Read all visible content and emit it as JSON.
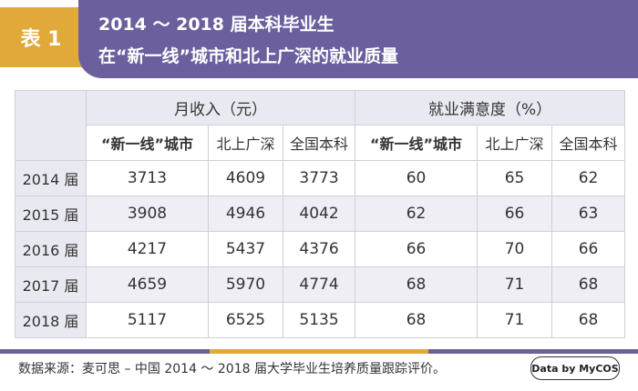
{
  "header": {
    "tag": "表 1",
    "title_line1": "2014 ～ 2018 届本科毕业生",
    "title_line2": "在“新一线”城市和北上广深的就业质量"
  },
  "table": {
    "group_headers": [
      "月收入（元）",
      "就业满意度（%）"
    ],
    "sub_headers": [
      "“新一线”城市",
      "北上广深",
      "全国本科",
      "“新一线”城市",
      "北上广深",
      "全国本科"
    ],
    "rows": [
      {
        "label": "2014 届",
        "cells": [
          "3713",
          "4609",
          "3773",
          "60",
          "65",
          "62"
        ]
      },
      {
        "label": "2015 届",
        "cells": [
          "3908",
          "4946",
          "4042",
          "62",
          "66",
          "63"
        ]
      },
      {
        "label": "2016 届",
        "cells": [
          "4217",
          "5437",
          "4376",
          "66",
          "70",
          "66"
        ]
      },
      {
        "label": "2017 届",
        "cells": [
          "4659",
          "5970",
          "4774",
          "68",
          "71",
          "68"
        ]
      },
      {
        "label": "2018 届",
        "cells": [
          "5117",
          "6525",
          "5135",
          "68",
          "71",
          "68"
        ]
      }
    ]
  },
  "footer": {
    "source": "数据来源：麦可思 – 中国 2014 ～ 2018 届大学毕业生培养质量跟踪评价。",
    "brand": "Data by MyCOS"
  },
  "colors": {
    "accent_purple": "#6b5f9e",
    "accent_gold": "#e0a93a",
    "row_alt": "#eeeef4"
  }
}
